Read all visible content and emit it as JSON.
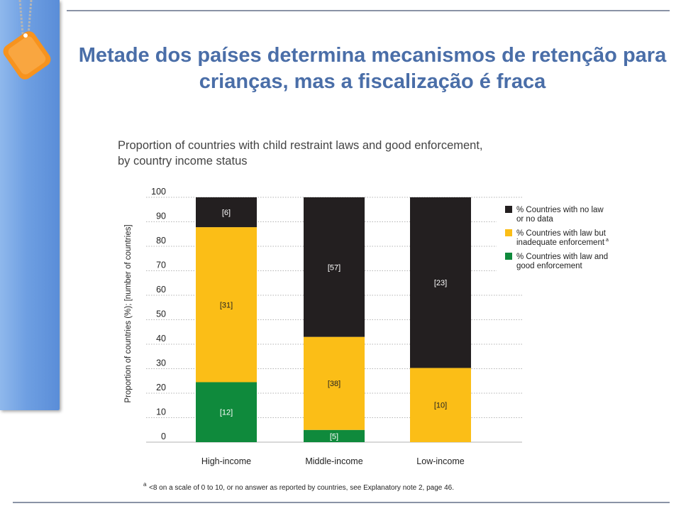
{
  "slide": {
    "title": "Metade dos países determina mecanismos de retenção para crianças, mas a fiscalização é fraca"
  },
  "colors": {
    "sidebar": "#6e9fe2",
    "title": "#4a6ea8",
    "badge": "#f7931e",
    "no_law": "#231f20",
    "law_inadequate": "#fbbe17",
    "law_good": "#0f8a3c"
  },
  "chart_data": {
    "type": "bar",
    "stacked": true,
    "title": "Proportion of countries with child restraint laws and good enforcement, by country income status",
    "ylabel": "Proportion of countries (%); [number of countries]",
    "xlabel": "",
    "ylim": [
      0,
      100
    ],
    "yticks": [
      0,
      10,
      20,
      30,
      40,
      50,
      60,
      70,
      80,
      90,
      100
    ],
    "categories": [
      "High-income",
      "Middle-income",
      "Low-income"
    ],
    "series": [
      {
        "name": "% Countries with law and good enforcement",
        "values": [
          24.5,
          5.0,
          0
        ],
        "labels": [
          "[12]",
          "[5]",
          ""
        ]
      },
      {
        "name": "% Countries with law but inadequate enforcementᵃ",
        "values": [
          63.3,
          38.0,
          30.3
        ],
        "labels": [
          "[31]",
          "[38]",
          "[10]"
        ]
      },
      {
        "name": "% Countries with no law or no data",
        "values": [
          12.2,
          57.0,
          69.7
        ],
        "labels": [
          "[6]",
          "[57]",
          "[23]"
        ]
      }
    ],
    "legend_position": "top-right",
    "grid": true,
    "footnote_marker": "a",
    "footnote": "<8 on a scale of 0 to 10, or no answer as reported by countries, see Explanatory note 2, page 46."
  }
}
